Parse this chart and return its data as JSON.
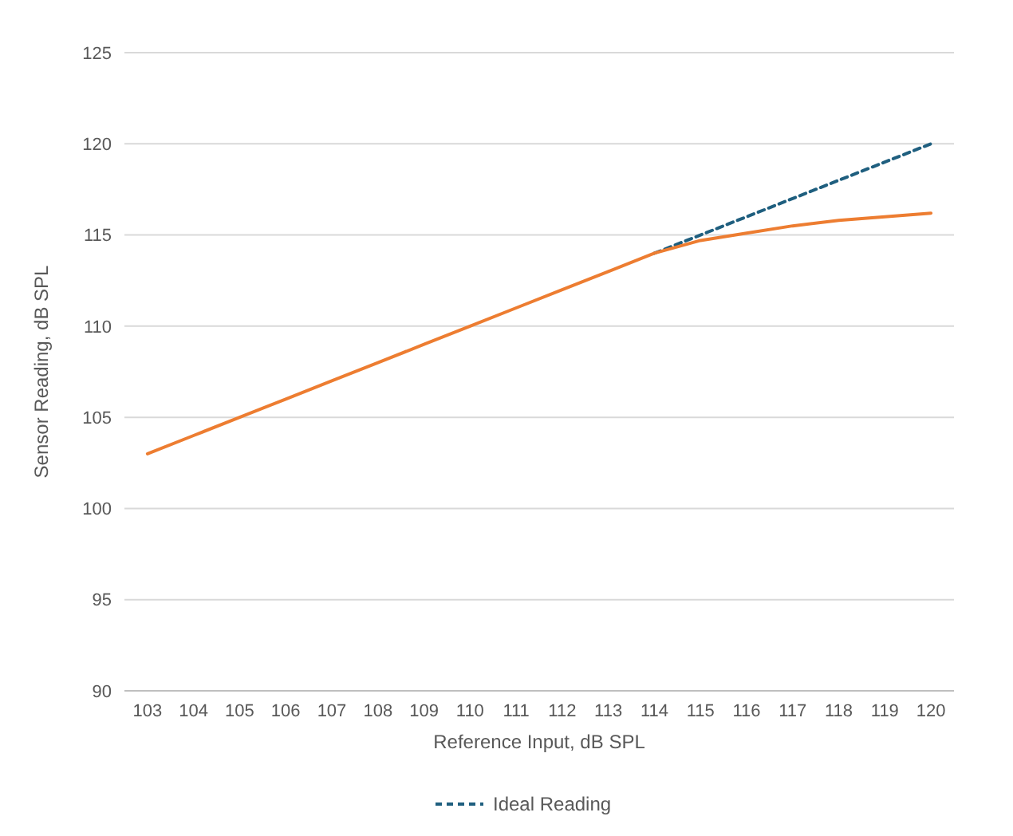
{
  "chart_data": {
    "type": "line",
    "xlabel": "Reference Input, dB SPL",
    "ylabel": "Sensor Reading, dB SPL",
    "categories": [
      "103",
      "104",
      "105",
      "106",
      "107",
      "108",
      "109",
      "110",
      "111",
      "112",
      "113",
      "114",
      "115",
      "116",
      "117",
      "118",
      "119",
      "120"
    ],
    "series": [
      {
        "name": "Ideal Reading",
        "color": "#1f5f7f",
        "line_style": "dashed",
        "values": [
          null,
          null,
          null,
          null,
          null,
          null,
          null,
          null,
          null,
          null,
          null,
          114,
          115,
          116,
          117,
          118,
          119,
          120
        ]
      },
      {
        "color": "#ed7d31",
        "line_style": "solid",
        "values": [
          103,
          104,
          105,
          106,
          107,
          108,
          109,
          110,
          111,
          112,
          113,
          114,
          114.7,
          115.1,
          115.5,
          115.8,
          116,
          116.2
        ]
      }
    ],
    "ylim": [
      90,
      125
    ],
    "yticks": [
      90,
      95,
      100,
      105,
      110,
      115,
      120,
      125
    ],
    "grid": "y",
    "legend": "bottom",
    "marker": "none"
  }
}
